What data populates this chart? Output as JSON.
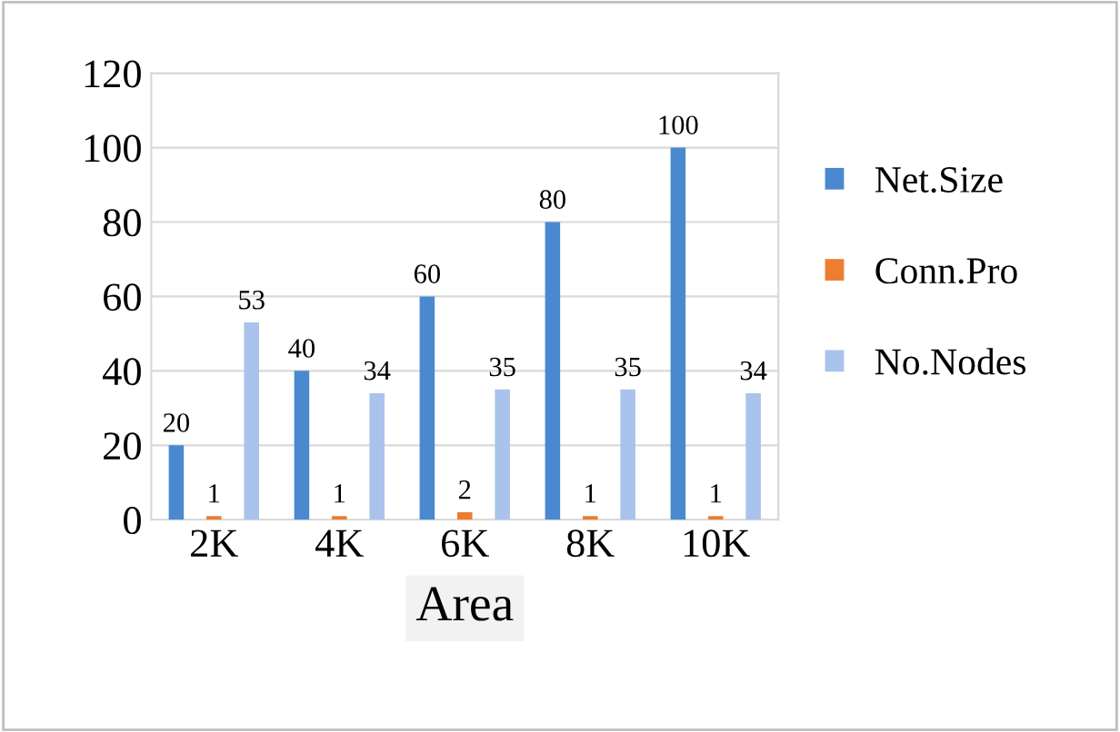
{
  "chart_data": {
    "type": "bar",
    "xlabel": "Area",
    "categories": [
      "2K",
      "4K",
      "6K",
      "8K",
      "10K"
    ],
    "series": [
      {
        "name": "Net.Size",
        "color": "#4a89d0",
        "values": [
          20,
          40,
          60,
          80,
          100
        ]
      },
      {
        "name": "Conn.Pro",
        "color": "#ed7d31",
        "values": [
          1,
          1,
          2,
          1,
          1
        ]
      },
      {
        "name": "No.Nodes",
        "color": "#a9c3ec",
        "values": [
          53,
          34,
          35,
          35,
          34
        ]
      }
    ],
    "ylim": [
      0,
      120
    ],
    "yticks": [
      0,
      20,
      40,
      60,
      80,
      100,
      120
    ],
    "grid": "y",
    "legend": "right",
    "data_labels": true
  }
}
